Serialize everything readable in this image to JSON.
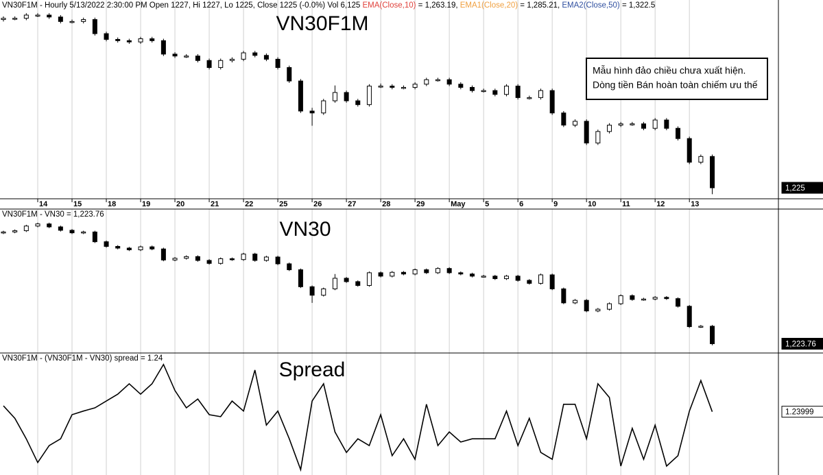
{
  "chart_data": [
    {
      "type": "candlestick",
      "title": "VN30F1M",
      "header": [
        {
          "text": "VN30F1M - Hourly 5/13/2022 2:30:00 PM Open 1227, Hi 1227, Lo 1225, Close 1225 (-0.0%) Vol 6,125 ",
          "color": "#000000"
        },
        {
          "text": "EMA(Close,10)",
          "color": "#e0403a"
        },
        {
          "text": " = 1,263.19, ",
          "color": "#000000"
        },
        {
          "text": "EMA1(Close,20)",
          "color": "#f0a040"
        },
        {
          "text": " = 1,285.21, ",
          "color": "#000000"
        },
        {
          "text": "EMA2(Close,50)",
          "color": "#3050a0"
        },
        {
          "text": " = 1,322.5",
          "color": "#000000"
        }
      ],
      "annotation": [
        "Mẫu hình đảo chiều chưa xuất hiện.",
        "Dòng tiền Bán hoàn toàn chiếm ưu thế"
      ],
      "categories": [
        null,
        null,
        null,
        "14",
        null,
        null,
        "15",
        null,
        null,
        "18",
        null,
        null,
        "19",
        null,
        null,
        "20",
        null,
        null,
        "21",
        null,
        null,
        "22",
        null,
        null,
        "25",
        null,
        null,
        "26",
        null,
        null,
        "27",
        null,
        null,
        "28",
        null,
        null,
        "29",
        null,
        null,
        "May",
        null,
        null,
        "5",
        null,
        null,
        "6",
        null,
        null,
        "9",
        null,
        null,
        "10",
        null,
        null,
        "11",
        null,
        null,
        "12",
        null,
        null,
        "13",
        null,
        null
      ],
      "ohlc": [
        [
          1488,
          1493,
          1485,
          1490
        ],
        [
          1490,
          1493,
          1487,
          1490
        ],
        [
          1490,
          1498,
          1487,
          1495
        ],
        [
          1495,
          1498,
          1492,
          1495
        ],
        [
          1495,
          1498,
          1489,
          1492
        ],
        [
          1492,
          1495,
          1482,
          1485
        ],
        [
          1485,
          1488,
          1482,
          1485
        ],
        [
          1485,
          1491,
          1482,
          1488
        ],
        [
          1488,
          1491,
          1463,
          1466
        ],
        [
          1466,
          1469,
          1454,
          1457
        ],
        [
          1457,
          1460,
          1452,
          1455
        ],
        [
          1455,
          1458,
          1450,
          1453
        ],
        [
          1453,
          1461,
          1450,
          1458
        ],
        [
          1458,
          1461,
          1452,
          1455
        ],
        [
          1455,
          1458,
          1431,
          1434
        ],
        [
          1434,
          1437,
          1428,
          1431
        ],
        [
          1431,
          1434,
          1428,
          1431
        ],
        [
          1431,
          1434,
          1421,
          1424
        ],
        [
          1424,
          1427,
          1410,
          1413
        ],
        [
          1413,
          1427,
          1410,
          1424
        ],
        [
          1424,
          1429,
          1421,
          1426
        ],
        [
          1426,
          1439,
          1423,
          1436
        ],
        [
          1436,
          1439,
          1429,
          1432
        ],
        [
          1432,
          1435,
          1423,
          1426
        ],
        [
          1426,
          1429,
          1410,
          1413
        ],
        [
          1413,
          1416,
          1389,
          1392
        ],
        [
          1392,
          1395,
          1342,
          1345
        ],
        [
          1345,
          1350,
          1322,
          1342
        ],
        [
          1342,
          1364,
          1339,
          1361
        ],
        [
          1361,
          1385,
          1358,
          1374
        ],
        [
          1374,
          1377,
          1358,
          1361
        ],
        [
          1361,
          1364,
          1352,
          1355
        ],
        [
          1355,
          1387,
          1352,
          1384
        ],
        [
          1384,
          1388,
          1381,
          1384
        ],
        [
          1384,
          1387,
          1379,
          1382
        ],
        [
          1382,
          1385,
          1379,
          1382
        ],
        [
          1382,
          1390,
          1379,
          1387
        ],
        [
          1387,
          1397,
          1384,
          1394
        ],
        [
          1394,
          1397,
          1391,
          1394
        ],
        [
          1394,
          1397,
          1384,
          1387
        ],
        [
          1387,
          1390,
          1379,
          1382
        ],
        [
          1382,
          1385,
          1374,
          1377
        ],
        [
          1377,
          1380,
          1374,
          1377
        ],
        [
          1377,
          1380,
          1368,
          1371
        ],
        [
          1371,
          1387,
          1368,
          1384
        ],
        [
          1384,
          1387,
          1363,
          1366
        ],
        [
          1366,
          1369,
          1363,
          1366
        ],
        [
          1366,
          1380,
          1363,
          1377
        ],
        [
          1377,
          1380,
          1339,
          1342
        ],
        [
          1342,
          1345,
          1320,
          1323
        ],
        [
          1323,
          1332,
          1320,
          1329
        ],
        [
          1329,
          1332,
          1292,
          1295
        ],
        [
          1295,
          1316,
          1292,
          1313
        ],
        [
          1313,
          1326,
          1310,
          1323
        ],
        [
          1323,
          1328,
          1320,
          1325
        ],
        [
          1325,
          1328,
          1322,
          1325
        ],
        [
          1325,
          1328,
          1315,
          1318
        ],
        [
          1318,
          1334,
          1315,
          1331
        ],
        [
          1331,
          1334,
          1315,
          1318
        ],
        [
          1318,
          1321,
          1299,
          1302
        ],
        [
          1302,
          1305,
          1262,
          1265
        ],
        [
          1265,
          1277,
          1262,
          1274
        ],
        [
          1274,
          1277,
          1215,
          1225
        ]
      ],
      "ylim": [
        1210,
        1510
      ],
      "last_label": "1,225",
      "grid": true
    },
    {
      "type": "candlestick",
      "title": "VN30",
      "header": [
        {
          "text": "VN30F1M - VN30 = 1,223.76",
          "color": "#000000"
        }
      ],
      "ohlc": [
        [
          1485,
          1490,
          1482,
          1487
        ],
        [
          1487,
          1493,
          1484,
          1490
        ],
        [
          1490,
          1504,
          1487,
          1501
        ],
        [
          1501,
          1509,
          1498,
          1506
        ],
        [
          1506,
          1509,
          1496,
          1499
        ],
        [
          1499,
          1502,
          1488,
          1491
        ],
        [
          1491,
          1494,
          1482,
          1485
        ],
        [
          1485,
          1490,
          1482,
          1487
        ],
        [
          1487,
          1490,
          1461,
          1464
        ],
        [
          1464,
          1467,
          1450,
          1453
        ],
        [
          1453,
          1456,
          1446,
          1449
        ],
        [
          1449,
          1452,
          1442,
          1445
        ],
        [
          1445,
          1455,
          1442,
          1452
        ],
        [
          1452,
          1455,
          1444,
          1447
        ],
        [
          1447,
          1450,
          1418,
          1421
        ],
        [
          1421,
          1428,
          1418,
          1425
        ],
        [
          1425,
          1432,
          1422,
          1429
        ],
        [
          1429,
          1432,
          1417,
          1420
        ],
        [
          1420,
          1423,
          1410,
          1413
        ],
        [
          1413,
          1427,
          1410,
          1424
        ],
        [
          1424,
          1427,
          1419,
          1422
        ],
        [
          1422,
          1438,
          1419,
          1435
        ],
        [
          1435,
          1438,
          1417,
          1420
        ],
        [
          1420,
          1431,
          1417,
          1428
        ],
        [
          1428,
          1431,
          1409,
          1412
        ],
        [
          1412,
          1415,
          1395,
          1398
        ],
        [
          1398,
          1401,
          1355,
          1358
        ],
        [
          1358,
          1361,
          1320,
          1338
        ],
        [
          1338,
          1356,
          1335,
          1353
        ],
        [
          1353,
          1388,
          1350,
          1378
        ],
        [
          1378,
          1381,
          1367,
          1370
        ],
        [
          1370,
          1373,
          1358,
          1361
        ],
        [
          1361,
          1394,
          1358,
          1391
        ],
        [
          1391,
          1394,
          1380,
          1383
        ],
        [
          1383,
          1395,
          1380,
          1392
        ],
        [
          1392,
          1395,
          1385,
          1388
        ],
        [
          1388,
          1401,
          1385,
          1398
        ],
        [
          1398,
          1401,
          1388,
          1391
        ],
        [
          1391,
          1404,
          1388,
          1401
        ],
        [
          1401,
          1404,
          1388,
          1391
        ],
        [
          1391,
          1394,
          1385,
          1388
        ],
        [
          1388,
          1391,
          1380,
          1383
        ],
        [
          1383,
          1386,
          1380,
          1383
        ],
        [
          1383,
          1386,
          1374,
          1377
        ],
        [
          1377,
          1386,
          1374,
          1383
        ],
        [
          1383,
          1386,
          1370,
          1373
        ],
        [
          1373,
          1376,
          1363,
          1366
        ],
        [
          1366,
          1389,
          1363,
          1386
        ],
        [
          1386,
          1389,
          1350,
          1353
        ],
        [
          1353,
          1356,
          1317,
          1320
        ],
        [
          1320,
          1329,
          1317,
          1326
        ],
        [
          1326,
          1329,
          1298,
          1301
        ],
        [
          1301,
          1308,
          1298,
          1305
        ],
        [
          1305,
          1321,
          1302,
          1318
        ],
        [
          1318,
          1340,
          1315,
          1337
        ],
        [
          1337,
          1340,
          1325,
          1328
        ],
        [
          1328,
          1332,
          1325,
          1329
        ],
        [
          1329,
          1336,
          1326,
          1333
        ],
        [
          1333,
          1336,
          1327,
          1330
        ],
        [
          1330,
          1333,
          1309,
          1312
        ],
        [
          1312,
          1315,
          1261,
          1264
        ],
        [
          1264,
          1268,
          1261,
          1265
        ],
        [
          1265,
          1268,
          1220,
          1223.76
        ]
      ],
      "ylim": [
        1210,
        1520
      ],
      "last_label": "1,223.76",
      "grid": true
    },
    {
      "type": "line",
      "title": "Spread",
      "header": [
        {
          "text": "VN30F1M - (VN30F1M - VN30) spread = 1.24",
          "color": "#000000"
        }
      ],
      "values": [
        2.7,
        -0.4,
        -5.5,
        -11.4,
        -7.2,
        -5.5,
        0.5,
        1.4,
        2.2,
        3.9,
        5.6,
        8.2,
        5.6,
        8.2,
        13.0,
        6.5,
        2.2,
        4.4,
        0.5,
        0.0,
        3.9,
        1.4,
        11.6,
        -2.1,
        1.4,
        -5.5,
        -13.2,
        3.9,
        8.2,
        -3.8,
        -8.9,
        -5.5,
        -7.2,
        0.5,
        -9.7,
        -5.5,
        -10.6,
        3.1,
        -7.2,
        -3.8,
        -6.3,
        -5.5,
        -5.5,
        -5.5,
        1.4,
        -7.2,
        -0.4,
        -8.9,
        -10.6,
        3.1,
        3.1,
        -5.5,
        8.2,
        4.8,
        -12.3,
        -2.9,
        -10.6,
        -2.1,
        -12.3,
        -9.7,
        1.4,
        9.0,
        1.23999
      ],
      "color": "#000000",
      "ylim": [
        -14,
        15
      ],
      "last_label": "1.23999",
      "grid": true
    }
  ]
}
